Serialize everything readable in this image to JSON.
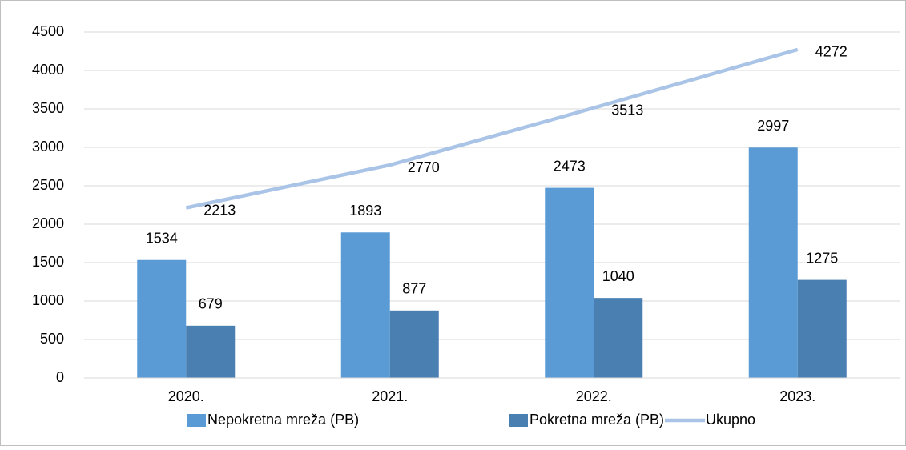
{
  "chart_data": {
    "type": "bar",
    "categories": [
      "2020.",
      "2021.",
      "2022.",
      "2023."
    ],
    "series": [
      {
        "name": "Nepokretna mreža (PB)",
        "color": "#5b9bd5",
        "values": [
          1534,
          1893,
          2473,
          2997
        ]
      },
      {
        "name": "Pokretna mreža (PB)",
        "color": "#4a7fb1",
        "values": [
          679,
          877,
          1040,
          1275
        ]
      },
      {
        "name": "Ukupno",
        "type": "line",
        "color": "#a9c4e6",
        "values": [
          2213,
          2770,
          3513,
          4272
        ]
      }
    ],
    "ylim": [
      0,
      4500
    ],
    "yticks": [
      0,
      500,
      1000,
      1500,
      2000,
      2500,
      3000,
      3500,
      4000,
      4500
    ],
    "grid": true,
    "legend": "bottom"
  }
}
